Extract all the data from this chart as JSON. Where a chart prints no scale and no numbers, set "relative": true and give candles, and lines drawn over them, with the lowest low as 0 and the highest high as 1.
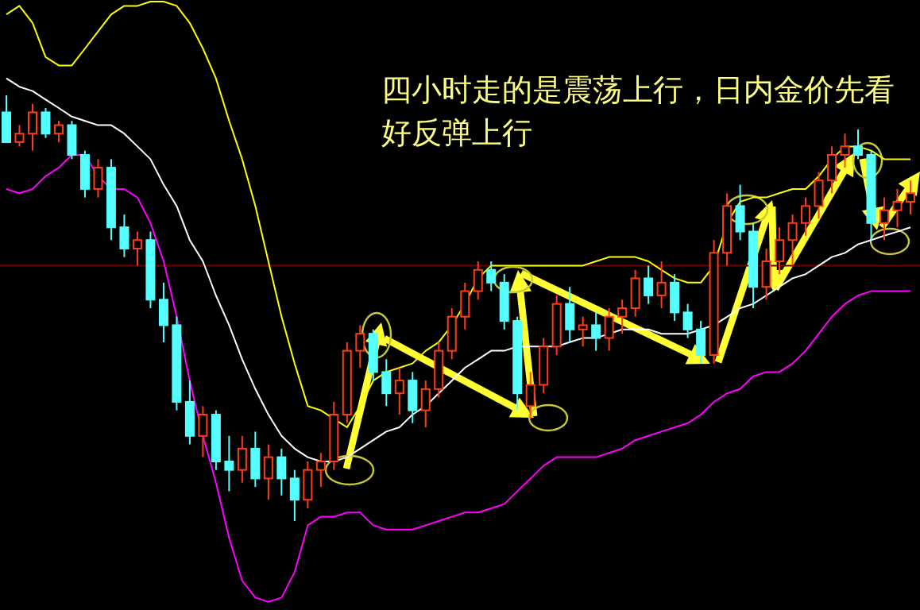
{
  "chart_data": {
    "type": "candlestick",
    "relative": true,
    "categories": [
      null,
      null,
      null,
      null,
      null,
      null,
      null,
      null,
      null,
      null,
      null,
      null,
      null,
      null,
      null,
      null,
      null,
      null,
      null,
      null,
      null,
      null,
      null,
      null,
      null,
      null,
      null,
      null,
      null,
      null,
      null,
      null,
      null,
      null,
      null,
      null,
      null,
      null,
      null,
      null,
      null,
      null,
      null,
      null,
      null,
      null,
      null,
      null,
      null,
      null,
      null,
      null,
      null,
      null,
      null,
      null,
      null,
      null,
      null,
      null,
      null,
      null,
      null,
      null,
      null,
      null,
      null,
      null,
      null,
      null
    ],
    "ohlc": [
      [
        0.96,
        1.0,
        0.89,
        0.89
      ],
      [
        0.89,
        0.93,
        0.88,
        0.91
      ],
      [
        0.91,
        0.98,
        0.87,
        0.96
      ],
      [
        0.96,
        0.97,
        0.9,
        0.91
      ],
      [
        0.91,
        0.94,
        0.89,
        0.93
      ],
      [
        0.93,
        0.94,
        0.85,
        0.86
      ],
      [
        0.86,
        0.87,
        0.76,
        0.78
      ],
      [
        0.78,
        0.85,
        0.76,
        0.83
      ],
      [
        0.83,
        0.85,
        0.66,
        0.69
      ],
      [
        0.69,
        0.72,
        0.62,
        0.64
      ],
      [
        0.64,
        0.68,
        0.6,
        0.66
      ],
      [
        0.66,
        0.68,
        0.5,
        0.52
      ],
      [
        0.52,
        0.56,
        0.42,
        0.46
      ],
      [
        0.46,
        0.48,
        0.26,
        0.28
      ],
      [
        0.28,
        0.33,
        0.18,
        0.2
      ],
      [
        0.2,
        0.27,
        0.15,
        0.25
      ],
      [
        0.25,
        0.26,
        0.12,
        0.14
      ],
      [
        0.14,
        0.2,
        0.07,
        0.12
      ],
      [
        0.12,
        0.2,
        0.09,
        0.17
      ],
      [
        0.17,
        0.21,
        0.08,
        0.1
      ],
      [
        0.1,
        0.18,
        0.05,
        0.15
      ],
      [
        0.15,
        0.17,
        0.06,
        0.1
      ],
      [
        0.1,
        0.12,
        0.0,
        0.05
      ],
      [
        0.05,
        0.14,
        0.03,
        0.12
      ],
      [
        0.12,
        0.16,
        0.08,
        0.14
      ],
      [
        0.14,
        0.28,
        0.12,
        0.25
      ],
      [
        0.25,
        0.42,
        0.23,
        0.4
      ],
      [
        0.4,
        0.46,
        0.36,
        0.44
      ],
      [
        0.44,
        0.45,
        0.33,
        0.35
      ],
      [
        0.35,
        0.38,
        0.27,
        0.3
      ],
      [
        0.3,
        0.36,
        0.25,
        0.33
      ],
      [
        0.33,
        0.35,
        0.23,
        0.26
      ],
      [
        0.26,
        0.33,
        0.22,
        0.31
      ],
      [
        0.31,
        0.42,
        0.29,
        0.4
      ],
      [
        0.4,
        0.5,
        0.38,
        0.48
      ],
      [
        0.48,
        0.56,
        0.45,
        0.54
      ],
      [
        0.54,
        0.61,
        0.52,
        0.59
      ],
      [
        0.59,
        0.61,
        0.54,
        0.56
      ],
      [
        0.56,
        0.58,
        0.45,
        0.47
      ],
      [
        0.47,
        0.48,
        0.26,
        0.3
      ],
      [
        0.27,
        0.35,
        0.24,
        0.32
      ],
      [
        0.32,
        0.43,
        0.3,
        0.41
      ],
      [
        0.41,
        0.53,
        0.39,
        0.51
      ],
      [
        0.51,
        0.55,
        0.42,
        0.45
      ],
      [
        0.45,
        0.48,
        0.41,
        0.46
      ],
      [
        0.46,
        0.49,
        0.4,
        0.43
      ],
      [
        0.43,
        0.5,
        0.4,
        0.48
      ],
      [
        0.48,
        0.52,
        0.44,
        0.5
      ],
      [
        0.5,
        0.59,
        0.48,
        0.57
      ],
      [
        0.57,
        0.6,
        0.51,
        0.53
      ],
      [
        0.53,
        0.61,
        0.5,
        0.56
      ],
      [
        0.56,
        0.58,
        0.47,
        0.49
      ],
      [
        0.49,
        0.51,
        0.43,
        0.45
      ],
      [
        0.45,
        0.47,
        0.37,
        0.39
      ],
      [
        0.39,
        0.66,
        0.37,
        0.63
      ],
      [
        0.63,
        0.77,
        0.6,
        0.74
      ],
      [
        0.74,
        0.79,
        0.66,
        0.68
      ],
      [
        0.68,
        0.7,
        0.5,
        0.55
      ],
      [
        0.55,
        0.64,
        0.52,
        0.61
      ],
      [
        0.61,
        0.69,
        0.58,
        0.66
      ],
      [
        0.66,
        0.72,
        0.6,
        0.7
      ],
      [
        0.7,
        0.76,
        0.67,
        0.74
      ],
      [
        0.74,
        0.82,
        0.71,
        0.8
      ],
      [
        0.8,
        0.88,
        0.77,
        0.86
      ],
      [
        0.86,
        0.91,
        0.83,
        0.88
      ],
      [
        0.88,
        0.92,
        0.85,
        0.86
      ],
      [
        0.86,
        0.87,
        0.66,
        0.7
      ],
      [
        0.7,
        0.76,
        0.66,
        0.73
      ],
      [
        0.73,
        0.78,
        0.69,
        0.75
      ],
      [
        0.75,
        0.8,
        0.72,
        0.77
      ]
    ],
    "colors": [
      "#54ffff",
      "#ff3c14",
      "#ff3c14",
      "#54ffff",
      "#ff3c14",
      "#54ffff",
      "#54ffff",
      "#ff3c14",
      "#54ffff",
      "#54ffff",
      "#ff3c14",
      "#54ffff",
      "#54ffff",
      "#54ffff",
      "#54ffff",
      "#ff3c14",
      "#54ffff",
      "#54ffff",
      "#ff3c14",
      "#54ffff",
      "#ff3c14",
      "#54ffff",
      "#54ffff",
      "#ff3c14",
      "#ff3c14",
      "#ff3c14",
      "#ff3c14",
      "#ff3c14",
      "#54ffff",
      "#54ffff",
      "#ff3c14",
      "#54ffff",
      "#ff3c14",
      "#ff3c14",
      "#ff3c14",
      "#ff3c14",
      "#ff3c14",
      "#54ffff",
      "#54ffff",
      "#54ffff",
      "#ff3c14",
      "#ff3c14",
      "#ff3c14",
      "#54ffff",
      "#ff3c14",
      "#54ffff",
      "#ff3c14",
      "#ff3c14",
      "#ff3c14",
      "#54ffff",
      "#ff3c14",
      "#54ffff",
      "#54ffff",
      "#54ffff",
      "#ff3c14",
      "#ff3c14",
      "#54ffff",
      "#54ffff",
      "#ff3c14",
      "#ff3c14",
      "#ff3c14",
      "#ff3c14",
      "#ff3c14",
      "#ff3c14",
      "#ff3c14",
      "#54ffff",
      "#54ffff",
      "#ff3c14",
      "#ff3c14",
      "#ff3c14"
    ],
    "series": [
      {
        "type": "line",
        "color": "#ffff00",
        "values": [
          1.19,
          1.21,
          1.17,
          1.09,
          1.07,
          1.07,
          1.11,
          1.15,
          1.19,
          1.21,
          1.21,
          1.22,
          1.22,
          1.21,
          1.17,
          1.11,
          1.04,
          0.94,
          0.85,
          0.74,
          0.61,
          0.48,
          0.37,
          0.27,
          0.26,
          0.24,
          0.22,
          0.27,
          0.33,
          0.35,
          0.36,
          0.37,
          0.4,
          0.42,
          0.46,
          0.51,
          0.57,
          0.6,
          0.6,
          0.6,
          0.6,
          0.6,
          0.6,
          0.6,
          0.6,
          0.61,
          0.62,
          0.62,
          0.62,
          0.61,
          0.59,
          0.57,
          0.56,
          0.56,
          0.6,
          0.7,
          0.75,
          0.76,
          0.76,
          0.77,
          0.78,
          0.78,
          0.81,
          0.85,
          0.88,
          0.88,
          0.87,
          0.85,
          0.85,
          0.85
        ]
      },
      {
        "type": "line",
        "color": "#ffffff",
        "values": [
          1.04,
          1.02,
          1.01,
          0.99,
          0.97,
          0.95,
          0.94,
          0.93,
          0.93,
          0.91,
          0.88,
          0.85,
          0.79,
          0.74,
          0.66,
          0.61,
          0.53,
          0.46,
          0.38,
          0.31,
          0.25,
          0.2,
          0.17,
          0.15,
          0.14,
          0.14,
          0.15,
          0.17,
          0.19,
          0.21,
          0.22,
          0.25,
          0.27,
          0.3,
          0.33,
          0.36,
          0.38,
          0.4,
          0.4,
          0.41,
          0.41,
          0.41,
          0.41,
          0.42,
          0.43,
          0.43,
          0.44,
          0.45,
          0.45,
          0.45,
          0.44,
          0.44,
          0.44,
          0.45,
          0.46,
          0.48,
          0.5,
          0.51,
          0.53,
          0.55,
          0.57,
          0.58,
          0.6,
          0.62,
          0.63,
          0.65,
          0.66,
          0.67,
          0.68,
          0.69
        ]
      },
      {
        "type": "line",
        "color": "#ff00ff",
        "values": [
          0.78,
          0.77,
          0.78,
          0.81,
          0.83,
          0.86,
          0.86,
          0.81,
          0.78,
          0.78,
          0.76,
          0.7,
          0.61,
          0.48,
          0.33,
          0.2,
          0.09,
          -0.04,
          -0.14,
          -0.18,
          -0.19,
          -0.18,
          -0.12,
          -0.01,
          0.01,
          0.01,
          0.02,
          0.02,
          -0.01,
          -0.02,
          -0.02,
          -0.02,
          -0.01,
          0.0,
          0.01,
          0.02,
          0.02,
          0.03,
          0.04,
          0.07,
          0.1,
          0.13,
          0.15,
          0.15,
          0.15,
          0.15,
          0.16,
          0.17,
          0.19,
          0.2,
          0.21,
          0.22,
          0.23,
          0.25,
          0.28,
          0.3,
          0.31,
          0.34,
          0.35,
          0.35,
          0.37,
          0.4,
          0.44,
          0.48,
          0.51,
          0.53,
          0.54,
          0.54,
          0.54,
          0.54
        ]
      }
    ],
    "ref_lines": [
      {
        "axis": "y",
        "value": 0.6,
        "color": "#6b0000"
      }
    ],
    "annotations": [
      "四小时走的是震荡上行，日内金价先看好反弹上行"
    ]
  }
}
